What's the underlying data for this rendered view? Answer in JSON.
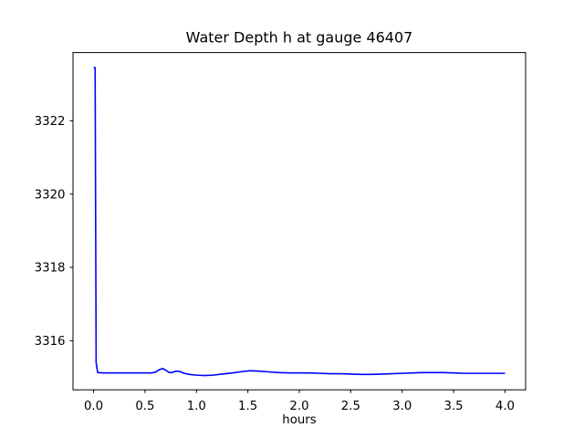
{
  "chart_data": {
    "type": "line",
    "title": "Water Depth h at gauge 46407",
    "xlabel": "hours",
    "ylabel": "",
    "xlim": [
      -0.2,
      4.2
    ],
    "ylim": [
      3314.66,
      3323.86
    ],
    "xtick_values": [
      0.0,
      0.5,
      1.0,
      1.5,
      2.0,
      2.5,
      3.0,
      3.5,
      4.0
    ],
    "xtick_labels": [
      "0.0",
      "0.5",
      "1.0",
      "1.5",
      "2.0",
      "2.5",
      "3.0",
      "3.5",
      "4.0"
    ],
    "ytick_values": [
      3316,
      3318,
      3320,
      3322
    ],
    "ytick_labels": [
      "3316",
      "3318",
      "3320",
      "3322"
    ],
    "grid": false,
    "legend": "none",
    "series": [
      {
        "name": "water depth h",
        "color": "#0000ff",
        "x": [
          0.0,
          0.015,
          0.025,
          0.04,
          0.1,
          0.2,
          0.3,
          0.4,
          0.5,
          0.56,
          0.6,
          0.64,
          0.67,
          0.7,
          0.73,
          0.76,
          0.8,
          0.84,
          0.88,
          0.93,
          1.0,
          1.08,
          1.16,
          1.25,
          1.35,
          1.45,
          1.52,
          1.6,
          1.7,
          1.8,
          1.9,
          2.0,
          2.1,
          2.2,
          2.3,
          2.4,
          2.5,
          2.6,
          2.7,
          2.8,
          2.9,
          3.0,
          3.1,
          3.2,
          3.3,
          3.4,
          3.5,
          3.6,
          3.7,
          3.8,
          3.9,
          4.0
        ],
        "y": [
          3323.45,
          3323.45,
          3315.4,
          3315.13,
          3315.12,
          3315.12,
          3315.12,
          3315.12,
          3315.12,
          3315.12,
          3315.14,
          3315.21,
          3315.24,
          3315.2,
          3315.14,
          3315.13,
          3315.17,
          3315.16,
          3315.11,
          3315.08,
          3315.06,
          3315.05,
          3315.06,
          3315.09,
          3315.12,
          3315.16,
          3315.18,
          3315.17,
          3315.15,
          3315.13,
          3315.12,
          3315.12,
          3315.12,
          3315.11,
          3315.1,
          3315.1,
          3315.09,
          3315.08,
          3315.08,
          3315.09,
          3315.1,
          3315.11,
          3315.12,
          3315.13,
          3315.13,
          3315.13,
          3315.12,
          3315.11,
          3315.11,
          3315.11,
          3315.11,
          3315.11
        ]
      }
    ]
  },
  "colors": {
    "line": "#0000ff",
    "axes": "#000000",
    "text": "#000000",
    "background": "#ffffff"
  }
}
